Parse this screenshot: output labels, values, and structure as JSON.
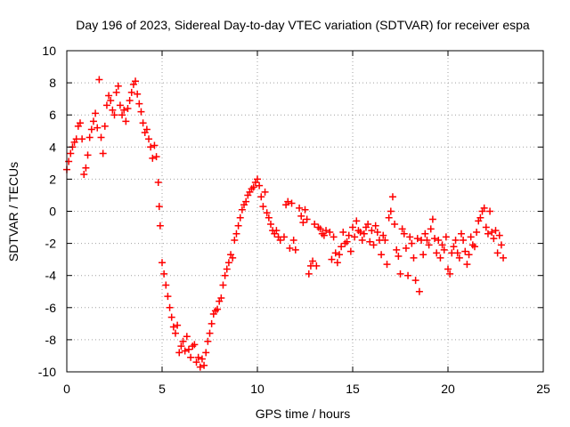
{
  "chart_data": {
    "type": "scatter",
    "title": "Day 196 of 2023, Sidereal Day-to-day VTEC variation (SDTVAR) for receiver espa",
    "xlabel": "GPS time / hours",
    "ylabel": "SDTVAR / TECUs",
    "xlim": [
      0,
      25
    ],
    "ylim": [
      -10,
      10
    ],
    "xticks": [
      0,
      5,
      10,
      15,
      20,
      25
    ],
    "yticks": [
      -10,
      -8,
      -6,
      -4,
      -2,
      0,
      2,
      4,
      6,
      8,
      10
    ],
    "xtick_labels": [
      "0",
      "5",
      "10",
      "15",
      "20",
      "25"
    ],
    "ytick_labels": [
      "-10",
      "-8",
      "-6",
      "-4",
      "-2",
      "0",
      "2",
      "4",
      "6",
      "8",
      "10"
    ],
    "grid": true,
    "marker": "+",
    "color": "#ff0000",
    "series": [
      {
        "name": "SDTVAR",
        "points": [
          [
            0.0,
            2.6
          ],
          [
            0.1,
            3.1
          ],
          [
            0.2,
            3.6
          ],
          [
            0.3,
            4.0
          ],
          [
            0.4,
            4.3
          ],
          [
            0.5,
            4.5
          ],
          [
            0.6,
            5.3
          ],
          [
            0.7,
            5.5
          ],
          [
            0.8,
            4.5
          ],
          [
            0.9,
            2.3
          ],
          [
            1.0,
            2.7
          ],
          [
            1.1,
            3.5
          ],
          [
            1.2,
            4.6
          ],
          [
            1.3,
            5.1
          ],
          [
            1.4,
            5.6
          ],
          [
            1.5,
            6.1
          ],
          [
            1.6,
            5.2
          ],
          [
            1.7,
            8.2
          ],
          [
            1.8,
            4.6
          ],
          [
            1.9,
            3.6
          ],
          [
            2.0,
            5.3
          ],
          [
            2.1,
            6.6
          ],
          [
            2.2,
            7.2
          ],
          [
            2.3,
            6.9
          ],
          [
            2.4,
            6.3
          ],
          [
            2.5,
            6.0
          ],
          [
            2.6,
            7.4
          ],
          [
            2.7,
            7.8
          ],
          [
            2.8,
            6.6
          ],
          [
            2.9,
            6.0
          ],
          [
            3.0,
            6.3
          ],
          [
            3.1,
            5.6
          ],
          [
            3.2,
            6.4
          ],
          [
            3.3,
            6.9
          ],
          [
            3.4,
            7.4
          ],
          [
            3.5,
            7.9
          ],
          [
            3.6,
            8.1
          ],
          [
            3.7,
            7.3
          ],
          [
            3.8,
            6.7
          ],
          [
            3.9,
            6.2
          ],
          [
            4.0,
            5.5
          ],
          [
            4.1,
            4.9
          ],
          [
            4.2,
            5.1
          ],
          [
            4.3,
            4.5
          ],
          [
            4.4,
            4.0
          ],
          [
            4.5,
            3.3
          ],
          [
            4.6,
            4.1
          ],
          [
            4.7,
            3.4
          ],
          [
            4.8,
            1.8
          ],
          [
            4.85,
            0.3
          ],
          [
            4.9,
            -0.9
          ],
          [
            5.0,
            -3.2
          ],
          [
            5.1,
            -3.9
          ],
          [
            5.2,
            -4.6
          ],
          [
            5.3,
            -5.3
          ],
          [
            5.4,
            -6.0
          ],
          [
            5.5,
            -6.6
          ],
          [
            5.6,
            -7.2
          ],
          [
            5.7,
            -7.6
          ],
          [
            5.8,
            -7.1
          ],
          [
            5.9,
            -8.8
          ],
          [
            6.0,
            -8.4
          ],
          [
            6.1,
            -8.1
          ],
          [
            6.2,
            -8.7
          ],
          [
            6.3,
            -7.8
          ],
          [
            6.4,
            -8.6
          ],
          [
            6.5,
            -9.1
          ],
          [
            6.6,
            -8.4
          ],
          [
            6.7,
            -8.3
          ],
          [
            6.8,
            -9.4
          ],
          [
            6.9,
            -9.1
          ],
          [
            7.0,
            -9.7
          ],
          [
            7.1,
            -9.2
          ],
          [
            7.2,
            -9.6
          ],
          [
            7.3,
            -8.8
          ],
          [
            7.4,
            -8.1
          ],
          [
            7.5,
            -7.6
          ],
          [
            7.6,
            -7.0
          ],
          [
            7.7,
            -6.4
          ],
          [
            7.8,
            -6.2
          ],
          [
            7.9,
            -6.1
          ],
          [
            8.0,
            -5.6
          ],
          [
            8.1,
            -5.4
          ],
          [
            8.2,
            -4.6
          ],
          [
            8.3,
            -4.0
          ],
          [
            8.4,
            -3.6
          ],
          [
            8.5,
            -3.2
          ],
          [
            8.6,
            -2.7
          ],
          [
            8.7,
            -2.9
          ],
          [
            8.8,
            -1.8
          ],
          [
            8.9,
            -1.4
          ],
          [
            9.0,
            -0.9
          ],
          [
            9.1,
            -0.4
          ],
          [
            9.2,
            0.1
          ],
          [
            9.3,
            0.4
          ],
          [
            9.4,
            0.6
          ],
          [
            9.5,
            1.0
          ],
          [
            9.6,
            1.2
          ],
          [
            9.7,
            1.4
          ],
          [
            9.8,
            1.5
          ],
          [
            9.9,
            1.8
          ],
          [
            10.0,
            2.0
          ],
          [
            10.1,
            1.6
          ],
          [
            10.2,
            0.9
          ],
          [
            10.3,
            0.3
          ],
          [
            10.4,
            1.2
          ],
          [
            10.5,
            -0.1
          ],
          [
            10.6,
            -0.4
          ],
          [
            10.7,
            -0.8
          ],
          [
            10.8,
            -1.2
          ],
          [
            10.9,
            -1.4
          ],
          [
            11.0,
            -1.2
          ],
          [
            11.1,
            -1.6
          ],
          [
            11.2,
            -1.8
          ],
          [
            11.4,
            -1.6
          ],
          [
            11.5,
            0.4
          ],
          [
            11.6,
            0.6
          ],
          [
            11.7,
            -2.3
          ],
          [
            11.8,
            0.5
          ],
          [
            11.9,
            -1.8
          ],
          [
            12.0,
            -2.4
          ],
          [
            12.2,
            0.2
          ],
          [
            12.3,
            -0.3
          ],
          [
            12.4,
            -0.7
          ],
          [
            12.5,
            0.1
          ],
          [
            12.6,
            -0.5
          ],
          [
            12.7,
            -3.9
          ],
          [
            12.8,
            -3.4
          ],
          [
            12.9,
            -3.1
          ],
          [
            13.0,
            -0.8
          ],
          [
            13.1,
            -3.4
          ],
          [
            13.2,
            -1.0
          ],
          [
            13.3,
            -1.1
          ],
          [
            13.4,
            -1.4
          ],
          [
            13.5,
            -1.5
          ],
          [
            13.6,
            -1.2
          ],
          [
            13.8,
            -1.3
          ],
          [
            13.9,
            -3.0
          ],
          [
            14.0,
            -1.6
          ],
          [
            14.1,
            -2.6
          ],
          [
            14.2,
            -3.2
          ],
          [
            14.3,
            -2.7
          ],
          [
            14.4,
            -2.2
          ],
          [
            14.5,
            -1.3
          ],
          [
            14.6,
            -2.0
          ],
          [
            14.7,
            -1.9
          ],
          [
            14.8,
            -1.5
          ],
          [
            14.9,
            -2.5
          ],
          [
            15.0,
            -1.0
          ],
          [
            15.1,
            -1.6
          ],
          [
            15.2,
            -0.6
          ],
          [
            15.3,
            -1.2
          ],
          [
            15.4,
            -1.3
          ],
          [
            15.5,
            -1.8
          ],
          [
            15.6,
            -1.4
          ],
          [
            15.7,
            -1.0
          ],
          [
            15.8,
            -0.8
          ],
          [
            15.9,
            -1.9
          ],
          [
            16.0,
            -1.2
          ],
          [
            16.1,
            -2.1
          ],
          [
            16.2,
            -0.9
          ],
          [
            16.3,
            -1.3
          ],
          [
            16.4,
            -1.8
          ],
          [
            16.5,
            -2.7
          ],
          [
            16.6,
            -1.5
          ],
          [
            16.7,
            -1.8
          ],
          [
            16.8,
            -3.3
          ],
          [
            16.9,
            -0.4
          ],
          [
            17.0,
            0.0
          ],
          [
            17.1,
            0.9
          ],
          [
            17.2,
            -0.8
          ],
          [
            17.3,
            -2.4
          ],
          [
            17.4,
            -2.8
          ],
          [
            17.5,
            -3.9
          ],
          [
            17.6,
            -1.1
          ],
          [
            17.7,
            -1.4
          ],
          [
            17.8,
            -2.3
          ],
          [
            17.9,
            -4.0
          ],
          [
            18.0,
            -1.6
          ],
          [
            18.1,
            -2.0
          ],
          [
            18.2,
            -2.9
          ],
          [
            18.3,
            -4.3
          ],
          [
            18.4,
            -1.7
          ],
          [
            18.5,
            -5.0
          ],
          [
            18.6,
            -1.8
          ],
          [
            18.7,
            -2.7
          ],
          [
            18.8,
            -1.4
          ],
          [
            18.9,
            -1.8
          ],
          [
            19.0,
            -2.1
          ],
          [
            19.1,
            -1.1
          ],
          [
            19.2,
            -0.5
          ],
          [
            19.3,
            -1.7
          ],
          [
            19.4,
            -2.6
          ],
          [
            19.5,
            -1.8
          ],
          [
            19.6,
            -2.9
          ],
          [
            19.7,
            -2.1
          ],
          [
            19.8,
            -2.4
          ],
          [
            19.9,
            -1.6
          ],
          [
            20.0,
            -3.6
          ],
          [
            20.1,
            -3.9
          ],
          [
            20.2,
            -2.6
          ],
          [
            20.3,
            -2.2
          ],
          [
            20.4,
            -1.8
          ],
          [
            20.5,
            -2.6
          ],
          [
            20.6,
            -2.9
          ],
          [
            20.7,
            -1.4
          ],
          [
            20.8,
            -1.8
          ],
          [
            20.9,
            -2.5
          ],
          [
            21.0,
            -3.3
          ],
          [
            21.1,
            -2.7
          ],
          [
            21.2,
            -1.6
          ],
          [
            21.3,
            -2.1
          ],
          [
            21.4,
            -2.2
          ],
          [
            21.5,
            -1.3
          ],
          [
            21.6,
            -0.6
          ],
          [
            21.7,
            -0.4
          ],
          [
            21.8,
            0.0
          ],
          [
            21.9,
            0.2
          ],
          [
            22.0,
            -1.0
          ],
          [
            22.1,
            -1.4
          ],
          [
            22.2,
            0.0
          ],
          [
            22.3,
            -1.3
          ],
          [
            22.4,
            -1.7
          ],
          [
            22.5,
            -1.2
          ],
          [
            22.6,
            -2.6
          ],
          [
            22.7,
            -1.5
          ],
          [
            22.8,
            -2.1
          ],
          [
            22.9,
            -2.9
          ]
        ]
      }
    ]
  }
}
